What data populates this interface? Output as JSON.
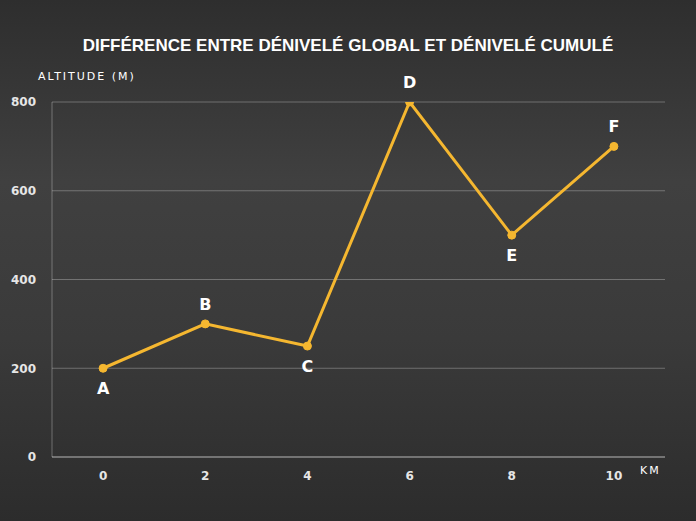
{
  "chart_data": {
    "type": "line",
    "title": "DIFFÉRENCE ENTRE DÉNIVELÉ GLOBAL ET DÉNIVELÉ CUMULÉ",
    "y_label": "ALTITUDE (M)",
    "x_label": "KM",
    "x": [
      0,
      2,
      4,
      6,
      8,
      10
    ],
    "values": [
      200,
      300,
      250,
      800,
      500,
      700
    ],
    "point_labels": [
      "A",
      "B",
      "C",
      "D",
      "E",
      "F"
    ],
    "color": "#f5b730",
    "marker": "circle",
    "xlim": [
      -1,
      11
    ],
    "xticks": [
      0,
      2,
      4,
      6,
      8,
      10
    ],
    "ylim": [
      0,
      800
    ],
    "yticks": [
      0,
      200,
      400,
      600,
      800
    ],
    "grid": true
  }
}
